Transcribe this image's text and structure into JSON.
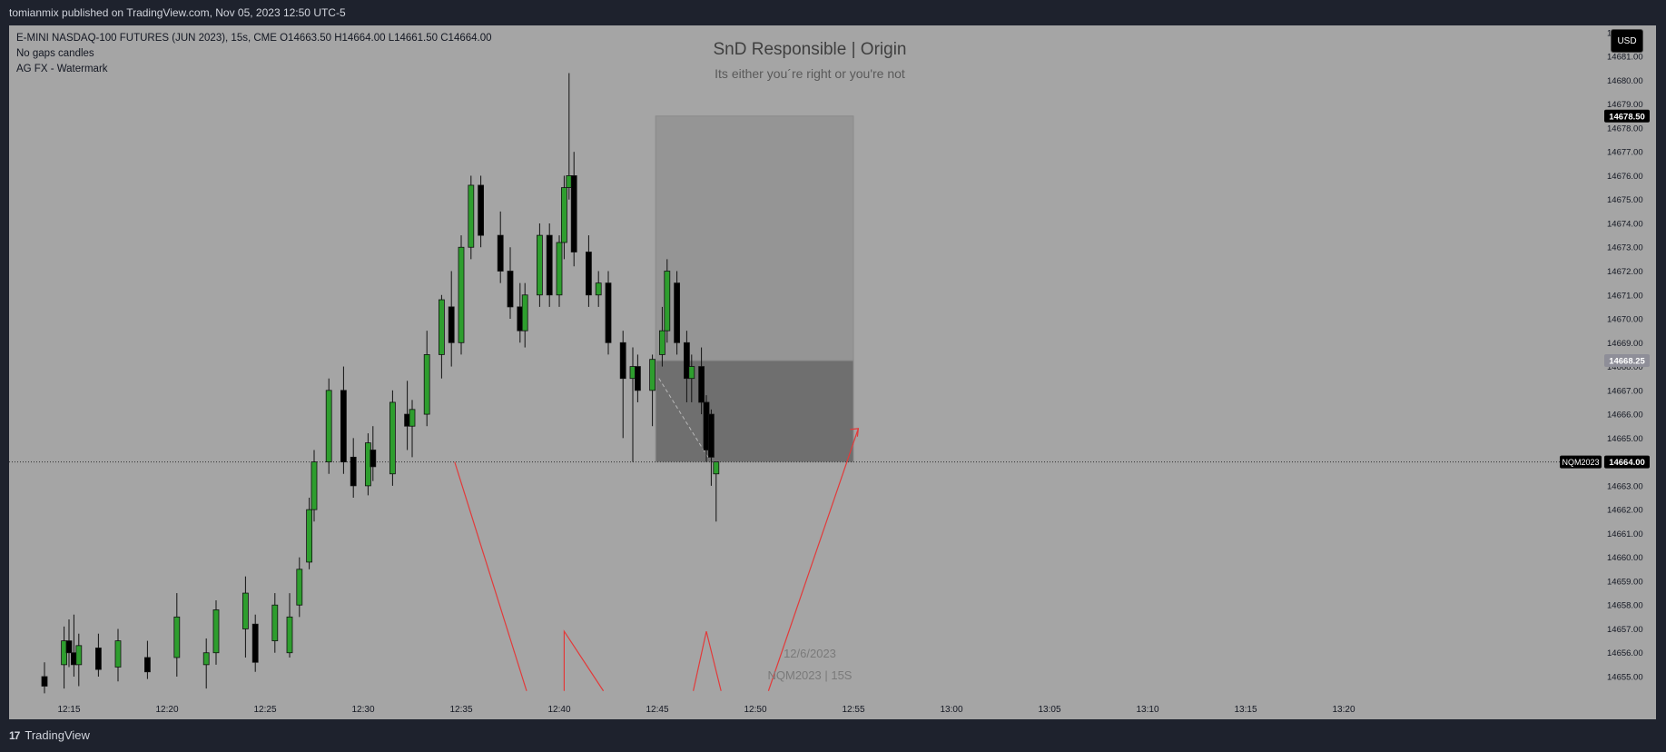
{
  "header": {
    "publisher_line": "tomianmix published on TradingView.com, Nov 05, 2023 12:50 UTC-5"
  },
  "legend": {
    "symbol_line": "E-MINI NASDAQ-100 FUTURES (JUN 2023), 15s, CME  O14663.50  H14664.00  L14661.50  C14664.00",
    "indicator1": "No gaps candles",
    "indicator2": "AG FX - Watermark"
  },
  "watermark": {
    "title": "SnD Responsible | Origin",
    "subtitle": "Its either you´re right or you're not",
    "date": "12/6/2023",
    "symbol": "NQM2023 | 15S"
  },
  "currency_button": "USD",
  "footer": {
    "brand": "TradingView",
    "logo": "17"
  },
  "colors": {
    "background": "#a5a5a5",
    "up_candle": "#2e9e2e",
    "down_candle": "#000000",
    "arrow": "#e23a3a",
    "zone_upper": "#959595",
    "zone_lower": "#6f6f6f"
  },
  "chart_data": {
    "type": "candlestick",
    "symbol": "NQM2023",
    "interval": "15s",
    "y_axis": {
      "ticks": [
        "14682.00",
        "14681.00",
        "14680.00",
        "14679.00",
        "14678.00",
        "14677.00",
        "14676.00",
        "14675.00",
        "14674.00",
        "14673.00",
        "14672.00",
        "14671.00",
        "14670.00",
        "14669.00",
        "14668.00",
        "14667.00",
        "14666.00",
        "14665.00",
        "14664.00",
        "14663.00",
        "14662.00",
        "14661.00",
        "14660.00",
        "14659.00",
        "14658.00",
        "14657.00",
        "14656.00",
        "14655.00"
      ],
      "ylim": [
        14654.2,
        14682.3
      ]
    },
    "x_axis": {
      "ticks": [
        "12:15",
        "12:20",
        "12:25",
        "12:30",
        "12:35",
        "12:40",
        "12:45",
        "12:50",
        "12:55",
        "13:00",
        "13:05",
        "13:10",
        "13:15",
        "13:20"
      ]
    },
    "price_labels": [
      {
        "value": "14678.50",
        "style": "dark"
      },
      {
        "value": "14668.25",
        "style": "grey"
      },
      {
        "value": "14664.00",
        "style": "dark",
        "tag": "NQM2023"
      }
    ],
    "last_price": 14664.0,
    "candles": [
      {
        "t": "12:13:45",
        "o": 14655.0,
        "h": 14655.6,
        "l": 14654.3,
        "c": 14654.6
      },
      {
        "t": "12:14:45",
        "o": 14655.5,
        "h": 14657.1,
        "l": 14654.5,
        "c": 14656.5
      },
      {
        "t": "12:15:00",
        "o": 14656.5,
        "h": 14657.4,
        "l": 14655.4,
        "c": 14656.0
      },
      {
        "t": "12:15:15",
        "o": 14656.0,
        "h": 14657.6,
        "l": 14655.0,
        "c": 14655.5
      },
      {
        "t": "12:15:30",
        "o": 14655.5,
        "h": 14656.8,
        "l": 14654.6,
        "c": 14656.3
      },
      {
        "t": "12:16:30",
        "o": 14656.2,
        "h": 14656.8,
        "l": 14655.0,
        "c": 14655.3
      },
      {
        "t": "12:17:30",
        "o": 14655.4,
        "h": 14657.0,
        "l": 14654.8,
        "c": 14656.5
      },
      {
        "t": "12:19:00",
        "o": 14655.8,
        "h": 14656.5,
        "l": 14654.9,
        "c": 14655.2
      },
      {
        "t": "12:20:30",
        "o": 14655.8,
        "h": 14658.5,
        "l": 14655.0,
        "c": 14657.5
      },
      {
        "t": "12:22:00",
        "o": 14655.5,
        "h": 14656.6,
        "l": 14654.5,
        "c": 14656.0
      },
      {
        "t": "12:22:30",
        "o": 14656.0,
        "h": 14658.2,
        "l": 14655.5,
        "c": 14657.8
      },
      {
        "t": "12:24:00",
        "o": 14657.0,
        "h": 14659.2,
        "l": 14655.8,
        "c": 14658.5
      },
      {
        "t": "12:24:30",
        "o": 14657.2,
        "h": 14657.6,
        "l": 14655.2,
        "c": 14655.6
      },
      {
        "t": "12:25:30",
        "o": 14656.5,
        "h": 14658.5,
        "l": 14656.0,
        "c": 14658.0
      },
      {
        "t": "12:26:15",
        "o": 14656.0,
        "h": 14658.5,
        "l": 14655.8,
        "c": 14657.5
      },
      {
        "t": "12:26:45",
        "o": 14658.0,
        "h": 14660.0,
        "l": 14657.5,
        "c": 14659.5
      },
      {
        "t": "12:27:15",
        "o": 14659.8,
        "h": 14662.5,
        "l": 14659.5,
        "c": 14662.0
      },
      {
        "t": "12:27:30",
        "o": 14662.0,
        "h": 14664.5,
        "l": 14661.5,
        "c": 14664.0
      },
      {
        "t": "12:28:15",
        "o": 14664.0,
        "h": 14667.5,
        "l": 14663.5,
        "c": 14667.0
      },
      {
        "t": "12:29:00",
        "o": 14667.0,
        "h": 14668.0,
        "l": 14663.5,
        "c": 14664.0
      },
      {
        "t": "12:29:30",
        "o": 14664.2,
        "h": 14665.0,
        "l": 14662.5,
        "c": 14663.0
      },
      {
        "t": "12:30:15",
        "o": 14663.0,
        "h": 14665.2,
        "l": 14662.6,
        "c": 14664.8
      },
      {
        "t": "12:30:30",
        "o": 14664.5,
        "h": 14665.5,
        "l": 14663.2,
        "c": 14663.8
      },
      {
        "t": "12:31:30",
        "o": 14663.5,
        "h": 14667.0,
        "l": 14663.0,
        "c": 14666.5
      },
      {
        "t": "12:32:15",
        "o": 14666.0,
        "h": 14667.4,
        "l": 14664.5,
        "c": 14665.5
      },
      {
        "t": "12:32:30",
        "o": 14665.5,
        "h": 14666.6,
        "l": 14664.2,
        "c": 14666.2
      },
      {
        "t": "12:33:15",
        "o": 14666.0,
        "h": 14669.5,
        "l": 14665.5,
        "c": 14668.5
      },
      {
        "t": "12:34:00",
        "o": 14668.5,
        "h": 14671.0,
        "l": 14667.5,
        "c": 14670.8
      },
      {
        "t": "12:34:30",
        "o": 14670.5,
        "h": 14672.0,
        "l": 14668.0,
        "c": 14669.0
      },
      {
        "t": "12:35:00",
        "o": 14669.0,
        "h": 14673.5,
        "l": 14668.5,
        "c": 14673.0
      },
      {
        "t": "12:35:30",
        "o": 14673.0,
        "h": 14676.0,
        "l": 14672.5,
        "c": 14675.6
      },
      {
        "t": "12:36:00",
        "o": 14675.6,
        "h": 14676.0,
        "l": 14673.0,
        "c": 14673.5
      },
      {
        "t": "12:37:00",
        "o": 14673.5,
        "h": 14674.5,
        "l": 14671.5,
        "c": 14672.0
      },
      {
        "t": "12:37:30",
        "o": 14672.0,
        "h": 14673.0,
        "l": 14670.0,
        "c": 14670.5
      },
      {
        "t": "12:38:00",
        "o": 14670.5,
        "h": 14671.5,
        "l": 14669.0,
        "c": 14669.5
      },
      {
        "t": "12:38:15",
        "o": 14669.5,
        "h": 14671.5,
        "l": 14668.8,
        "c": 14671.0
      },
      {
        "t": "12:39:00",
        "o": 14671.0,
        "h": 14674.0,
        "l": 14670.5,
        "c": 14673.5
      },
      {
        "t": "12:39:30",
        "o": 14673.5,
        "h": 14674.0,
        "l": 14670.5,
        "c": 14671.0
      },
      {
        "t": "12:40:00",
        "o": 14671.0,
        "h": 14673.5,
        "l": 14670.5,
        "c": 14673.2
      },
      {
        "t": "12:40:15",
        "o": 14673.2,
        "h": 14676.0,
        "l": 14672.5,
        "c": 14675.5
      },
      {
        "t": "12:40:30",
        "o": 14675.5,
        "h": 14680.3,
        "l": 14675.0,
        "c": 14676.0
      },
      {
        "t": "12:40:45",
        "o": 14676.0,
        "h": 14677.0,
        "l": 14672.2,
        "c": 14672.8
      },
      {
        "t": "12:41:30",
        "o": 14672.8,
        "h": 14673.5,
        "l": 14670.5,
        "c": 14671.0
      },
      {
        "t": "12:42:00",
        "o": 14671.0,
        "h": 14672.0,
        "l": 14670.5,
        "c": 14671.5
      },
      {
        "t": "12:42:30",
        "o": 14671.5,
        "h": 14672.0,
        "l": 14668.5,
        "c": 14669.0
      },
      {
        "t": "12:43:15",
        "o": 14669.0,
        "h": 14669.5,
        "l": 14665.0,
        "c": 14667.5
      },
      {
        "t": "12:43:45",
        "o": 14667.5,
        "h": 14668.8,
        "l": 14664.0,
        "c": 14668.0
      },
      {
        "t": "12:44:00",
        "o": 14668.0,
        "h": 14668.5,
        "l": 14666.5,
        "c": 14667.0
      },
      {
        "t": "12:44:45",
        "o": 14667.0,
        "h": 14668.5,
        "l": 14665.5,
        "c": 14668.3
      },
      {
        "t": "12:45:15",
        "o": 14668.5,
        "h": 14670.5,
        "l": 14668.0,
        "c": 14669.5
      },
      {
        "t": "12:45:30",
        "o": 14669.5,
        "h": 14672.5,
        "l": 14669.0,
        "c": 14672.0
      },
      {
        "t": "12:46:00",
        "o": 14671.5,
        "h": 14672.0,
        "l": 14668.5,
        "c": 14669.0
      },
      {
        "t": "12:46:30",
        "o": 14669.0,
        "h": 14669.5,
        "l": 14666.5,
        "c": 14667.5
      },
      {
        "t": "12:46:45",
        "o": 14667.5,
        "h": 14668.5,
        "l": 14666.5,
        "c": 14668.0
      },
      {
        "t": "12:47:15",
        "o": 14668.0,
        "h": 14668.8,
        "l": 14666.0,
        "c": 14666.5
      },
      {
        "t": "12:47:30",
        "o": 14666.5,
        "h": 14666.8,
        "l": 14664.0,
        "c": 14664.5
      },
      {
        "t": "12:47:45",
        "o": 14666.0,
        "h": 14666.2,
        "l": 14663.0,
        "c": 14664.2
      },
      {
        "t": "12:48:00",
        "o": 14663.5,
        "h": 14664.0,
        "l": 14661.5,
        "c": 14664.0
      }
    ],
    "zones": [
      {
        "name": "upper-zone",
        "from_time": "12:44:55",
        "to_time": "12:55:00",
        "top": 14678.5,
        "bottom": 14668.25
      },
      {
        "name": "lower-zone",
        "from_time": "12:44:55",
        "to_time": "12:55:00",
        "top": 14668.25,
        "bottom": 14664.0
      }
    ],
    "annotations": [
      {
        "name": "arrow-left-down",
        "points": [
          [
            "12:34:40",
            14664.0
          ],
          [
            "12:38:20",
            14654.4
          ]
        ]
      },
      {
        "name": "arrow-center-up",
        "points": [
          [
            "12:40:15",
            14654.4
          ],
          [
            "12:40:15",
            14656.9
          ],
          [
            "12:42:15",
            14654.4
          ]
        ]
      },
      {
        "name": "arrow-small-peak",
        "points": [
          [
            "12:46:50",
            14654.4
          ],
          [
            "12:47:30",
            14656.9
          ],
          [
            "12:48:15",
            14654.4
          ]
        ]
      },
      {
        "name": "arrow-right-up",
        "points": [
          [
            "12:50:40",
            14654.4
          ],
          [
            "12:55:15",
            14665.4
          ]
        ],
        "head": true
      }
    ]
  }
}
